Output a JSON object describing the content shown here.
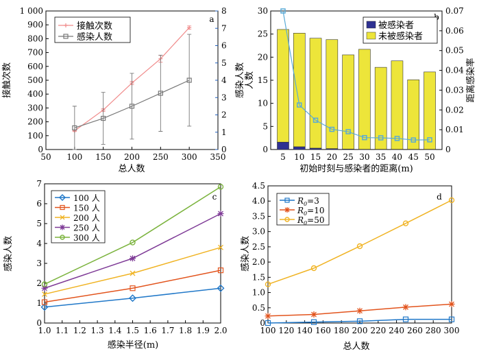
{
  "chart_data": [
    {
      "id": "a",
      "panel_label": "a",
      "type": "line",
      "xlabel": "总人数",
      "ylabel_left": "接触次数",
      "ylabel_right": "感染人数",
      "xlim": [
        50,
        350
      ],
      "ylim_left": [
        0,
        1000
      ],
      "ylim_right": [
        0,
        8
      ],
      "xticks": [
        "50",
        "100",
        "150",
        "200",
        "250",
        "300",
        "350"
      ],
      "yticks_left": [
        "0",
        "100",
        "200",
        "300",
        "400",
        "500",
        "600",
        "700",
        "800",
        "900",
        "1 000"
      ],
      "yticks_right": [
        "0",
        "1",
        "2",
        "3",
        "4",
        "5",
        "6",
        "7",
        "8"
      ],
      "legend_position": "top-left",
      "series": [
        {
          "name": "接触次数",
          "axis": "left",
          "color": "#f08a8a",
          "marker": "plus",
          "x": [
            100,
            150,
            200,
            250,
            300
          ],
          "y": [
            135,
            285,
            480,
            655,
            880
          ],
          "err": [
            5,
            10,
            12,
            25,
            12
          ]
        },
        {
          "name": "感染人数",
          "axis": "right",
          "color": "#777777",
          "marker": "square",
          "x": [
            100,
            150,
            200,
            250,
            300
          ],
          "y": [
            1.25,
            1.8,
            2.5,
            3.25,
            4.0
          ],
          "err": [
            1.25,
            1.5,
            1.9,
            2.2,
            2.65
          ]
        }
      ]
    },
    {
      "id": "b",
      "panel_label": "b",
      "type": "bar",
      "xlabel": "初始时刻与感染者的距离(m)",
      "ylabel_left": "人数",
      "ylabel_right": "距离感染率",
      "categories": [
        "5",
        "10",
        "15",
        "20",
        "25",
        "30",
        "35",
        "40",
        "45",
        "50"
      ],
      "ylim_left": [
        0,
        30
      ],
      "ylim_right": [
        0,
        0.07
      ],
      "yticks_left": [
        "0",
        "5",
        "10",
        "15",
        "20",
        "25",
        "30"
      ],
      "yticks_right": [
        "0",
        "0.01",
        "0.02",
        "0.03",
        "0.04",
        "0.05",
        "0.06",
        "0.07"
      ],
      "legend_position": "top-right",
      "stacked": [
        {
          "name": "被感染者",
          "color": "#2e3192",
          "values": [
            1.6,
            0.6,
            0.3,
            0.2,
            0.1,
            0.05,
            0.05,
            0.05,
            0.05,
            0.05
          ]
        },
        {
          "name": "未被感染者",
          "color": "#ede53a",
          "values": [
            24.4,
            24.6,
            23.8,
            23.6,
            20.4,
            21.65,
            17.75,
            19.15,
            15.05,
            16.75
          ]
        }
      ],
      "line": {
        "name": "距离感染率",
        "axis": "right",
        "color": "#5aaad6",
        "values": [
          0.07,
          0.0225,
          0.0148,
          0.0102,
          0.009,
          0.006,
          0.0059,
          0.0056,
          0.0048,
          0.0049
        ]
      }
    },
    {
      "id": "c",
      "panel_label": "c",
      "type": "line",
      "xlabel": "感染半径(m)",
      "ylabel": "感染人数",
      "xlim": [
        1.0,
        2.0
      ],
      "ylim": [
        0,
        7
      ],
      "xticks": [
        "1.0",
        "1.1",
        "1.2",
        "1.3",
        "1.4",
        "1.5",
        "1.6",
        "1.7",
        "1.8",
        "1.9",
        "2.0"
      ],
      "yticks": [
        "0",
        "1",
        "2",
        "3",
        "4",
        "5",
        "6",
        "7"
      ],
      "legend_position": "top-left",
      "series": [
        {
          "name": "100 人",
          "color": "#1f77c8",
          "marker": "diamond",
          "x": [
            1.0,
            1.5,
            2.0
          ],
          "y": [
            0.8,
            1.25,
            1.75
          ]
        },
        {
          "name": "150 人",
          "color": "#e2531c",
          "marker": "square",
          "x": [
            1.0,
            1.5,
            2.0
          ],
          "y": [
            1.05,
            1.75,
            2.65
          ]
        },
        {
          "name": "200 人",
          "color": "#f0b323",
          "marker": "x",
          "x": [
            1.0,
            1.5,
            2.0
          ],
          "y": [
            1.45,
            2.5,
            3.8
          ]
        },
        {
          "name": "250 人",
          "color": "#7e3a96",
          "marker": "star",
          "x": [
            1.0,
            1.5,
            2.0
          ],
          "y": [
            1.75,
            3.25,
            5.5
          ]
        },
        {
          "name": "300 人",
          "color": "#7bb33d",
          "marker": "circle",
          "x": [
            1.0,
            1.5,
            2.0
          ],
          "y": [
            1.95,
            4.05,
            6.85
          ]
        }
      ]
    },
    {
      "id": "d",
      "panel_label": "d",
      "type": "line",
      "xlabel": "总人数",
      "ylabel": "感染人数",
      "xlim": [
        100,
        300
      ],
      "ylim": [
        0,
        4.5
      ],
      "xticks": [
        "100",
        "120",
        "140",
        "160",
        "180",
        "200",
        "220",
        "240",
        "260",
        "280",
        "300"
      ],
      "yticks": [
        "0",
        "0.5",
        "1.0",
        "1.5",
        "2.0",
        "2.5",
        "3.0",
        "3.5",
        "4.0",
        "4.5"
      ],
      "legend_position": "top-left",
      "series": [
        {
          "name_main": "R",
          "name_sub": "0",
          "name_tail": "=3",
          "color": "#1f77c8",
          "marker": "square",
          "x": [
            100,
            150,
            200,
            250,
            300
          ],
          "y": [
            0.0,
            0.03,
            0.06,
            0.12,
            0.12
          ]
        },
        {
          "name_main": "R",
          "name_sub": "0",
          "name_tail": "=10",
          "color": "#e2531c",
          "marker": "star",
          "x": [
            100,
            150,
            200,
            250,
            300
          ],
          "y": [
            0.23,
            0.28,
            0.4,
            0.52,
            0.62
          ]
        },
        {
          "name_main": "R",
          "name_sub": "0",
          "name_tail": "=50",
          "color": "#f0b323",
          "marker": "circle",
          "x": [
            100,
            150,
            200,
            250,
            300
          ],
          "y": [
            1.27,
            1.8,
            2.52,
            3.27,
            4.03
          ]
        }
      ]
    }
  ]
}
